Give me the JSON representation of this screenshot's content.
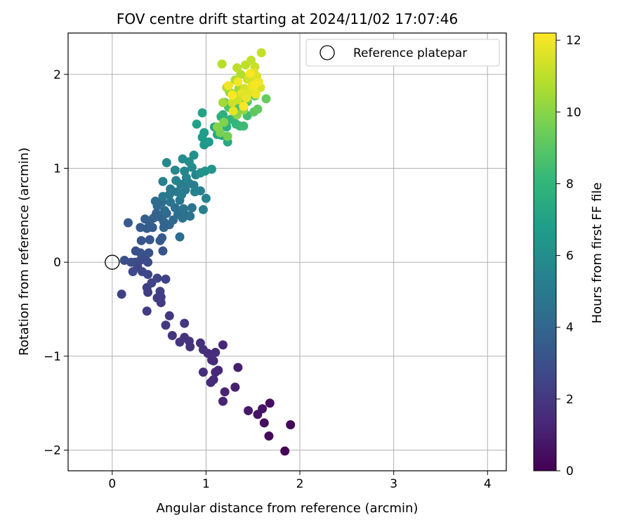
{
  "chart_data": {
    "type": "scatter",
    "title": "FOV centre drift starting at 2024/11/02 17:07:46",
    "xlabel": "Angular distance from reference (arcmin)",
    "ylabel": "Rotation from reference (arcmin)",
    "xlim": [
      -0.47,
      4.2
    ],
    "ylim": [
      -2.22,
      2.44
    ],
    "xticks": [
      0,
      1,
      2,
      3,
      4
    ],
    "yticks": [
      -2,
      -1,
      0,
      1,
      2
    ],
    "grid": true,
    "legend_position": "top-right",
    "reference": {
      "label": "Reference platepar",
      "x": 0,
      "y": 0
    },
    "colorbar": {
      "label": "Hours from first FF file",
      "colormap": "viridis",
      "range": [
        0,
        12.2
      ],
      "ticks": [
        0,
        2,
        4,
        6,
        8,
        10,
        12
      ]
    },
    "colormap_stops": [
      "#440154",
      "#482878",
      "#3e4989",
      "#31688e",
      "#26828e",
      "#1f9e89",
      "#35b779",
      "#6ece58",
      "#b5de2b",
      "#fde725"
    ],
    "series": [
      {
        "points": [
          [
            1.84,
            -2.01,
            0.1
          ],
          [
            1.9,
            -1.73,
            0.2
          ],
          [
            1.67,
            -1.85,
            0.3
          ],
          [
            1.62,
            -1.71,
            0.4
          ],
          [
            1.68,
            -1.5,
            0.5
          ],
          [
            1.55,
            -1.62,
            0.6
          ],
          [
            1.6,
            -1.56,
            0.7
          ],
          [
            1.45,
            -1.58,
            0.8
          ],
          [
            1.34,
            -1.12,
            1.0
          ],
          [
            1.31,
            -1.33,
            1.1
          ],
          [
            1.2,
            -1.38,
            1.2
          ],
          [
            1.18,
            -1.48,
            1.2
          ],
          [
            1.18,
            -0.88,
            1.3
          ],
          [
            1.13,
            -1.15,
            1.4
          ],
          [
            1.1,
            -1.17,
            1.4
          ],
          [
            1.08,
            -1.25,
            1.4
          ],
          [
            1.05,
            -1.28,
            1.5
          ],
          [
            1.06,
            -1.04,
            1.5
          ],
          [
            1.08,
            -1.05,
            1.5
          ],
          [
            1.1,
            -0.96,
            1.6
          ],
          [
            1.02,
            -0.97,
            1.6
          ],
          [
            0.97,
            -0.93,
            1.7
          ],
          [
            0.94,
            -0.86,
            1.7
          ],
          [
            0.97,
            -1.17,
            1.7
          ],
          [
            0.82,
            -0.84,
            1.8
          ],
          [
            0.83,
            -0.9,
            1.8
          ],
          [
            0.77,
            -0.8,
            1.8
          ],
          [
            0.72,
            -0.85,
            1.9
          ],
          [
            0.64,
            -0.78,
            1.9
          ],
          [
            0.57,
            -0.67,
            2.0
          ],
          [
            0.61,
            -0.57,
            2.0
          ],
          [
            0.77,
            -0.65,
            2.0
          ],
          [
            0.52,
            -0.43,
            2.1
          ],
          [
            0.52,
            -0.37,
            2.1
          ],
          [
            0.48,
            -0.38,
            2.2
          ],
          [
            0.38,
            -0.32,
            2.2
          ],
          [
            0.37,
            -0.52,
            2.2
          ],
          [
            0.37,
            -0.27,
            2.3
          ],
          [
            0.51,
            -0.31,
            2.3
          ],
          [
            0.1,
            -0.34,
            2.4
          ],
          [
            0.42,
            -0.22,
            2.5
          ],
          [
            0.57,
            -0.18,
            2.5
          ],
          [
            0.48,
            -0.17,
            2.5
          ],
          [
            0.38,
            -0.13,
            2.6
          ],
          [
            0.32,
            -0.1,
            2.6
          ],
          [
            0.27,
            -0.05,
            2.6
          ],
          [
            0.22,
            -0.1,
            2.7
          ],
          [
            0.24,
            0.0,
            2.7
          ],
          [
            0.38,
            0.0,
            2.8
          ],
          [
            0.3,
            0.02,
            2.8
          ],
          [
            0.2,
            0.0,
            2.9
          ],
          [
            0.35,
            0.05,
            2.9
          ],
          [
            0.13,
            0.02,
            3.0
          ],
          [
            0.25,
            0.12,
            3.0
          ],
          [
            0.39,
            0.1,
            3.1
          ],
          [
            0.3,
            0.1,
            3.1
          ],
          [
            0.54,
            0.12,
            3.2
          ],
          [
            0.31,
            0.23,
            3.3
          ],
          [
            0.4,
            0.24,
            3.3
          ],
          [
            0.51,
            0.23,
            3.4
          ],
          [
            0.53,
            0.26,
            3.4
          ],
          [
            0.17,
            0.42,
            3.5
          ],
          [
            0.3,
            0.37,
            3.5
          ],
          [
            0.37,
            0.36,
            3.6
          ],
          [
            0.43,
            0.37,
            3.6
          ],
          [
            0.35,
            0.46,
            3.7
          ],
          [
            0.4,
            0.4,
            3.7
          ],
          [
            0.44,
            0.47,
            3.8
          ],
          [
            0.47,
            0.52,
            3.8
          ],
          [
            0.51,
            0.48,
            3.9
          ],
          [
            0.55,
            0.43,
            3.9
          ],
          [
            0.55,
            0.37,
            4.0
          ],
          [
            0.61,
            0.4,
            4.0
          ],
          [
            0.65,
            0.45,
            4.1
          ],
          [
            0.58,
            0.52,
            4.1
          ],
          [
            0.48,
            0.6,
            4.2
          ],
          [
            0.53,
            0.64,
            4.2
          ],
          [
            0.46,
            0.65,
            4.3
          ],
          [
            0.56,
            0.55,
            4.3
          ],
          [
            0.67,
            0.58,
            4.4
          ],
          [
            0.72,
            0.27,
            4.4
          ],
          [
            0.7,
            0.51,
            4.5
          ],
          [
            0.75,
            0.47,
            4.5
          ],
          [
            0.79,
            0.5,
            4.6
          ],
          [
            0.83,
            0.49,
            4.6
          ],
          [
            0.76,
            0.57,
            4.7
          ],
          [
            0.85,
            0.58,
            4.7
          ],
          [
            0.72,
            0.66,
            4.8
          ],
          [
            0.62,
            0.64,
            4.8
          ],
          [
            0.54,
            0.7,
            4.9
          ],
          [
            0.61,
            0.72,
            4.9
          ],
          [
            0.62,
            0.78,
            5.0
          ],
          [
            0.69,
            0.75,
            5.0
          ],
          [
            0.74,
            0.72,
            5.1
          ],
          [
            0.78,
            0.77,
            5.1
          ],
          [
            0.73,
            0.83,
            5.2
          ],
          [
            0.82,
            0.84,
            5.2
          ],
          [
            0.87,
            0.82,
            5.2
          ],
          [
            0.88,
            0.75,
            5.3
          ],
          [
            0.94,
            0.76,
            5.3
          ],
          [
            0.97,
            0.56,
            5.3
          ],
          [
            1.0,
            0.68,
            5.4
          ],
          [
            0.54,
            0.86,
            5.4
          ],
          [
            0.68,
            0.87,
            5.5
          ],
          [
            0.79,
            0.9,
            5.5
          ],
          [
            0.89,
            0.93,
            5.6
          ],
          [
            0.77,
            0.97,
            5.6
          ],
          [
            0.67,
            0.98,
            5.7
          ],
          [
            0.58,
            1.06,
            5.7
          ],
          [
            0.85,
            1.01,
            5.8
          ],
          [
            0.75,
            1.1,
            5.9
          ],
          [
            0.82,
            1.07,
            6.0
          ],
          [
            0.87,
            1.14,
            6.1
          ],
          [
            0.94,
            0.95,
            6.2
          ],
          [
            0.99,
            0.97,
            6.3
          ],
          [
            1.06,
            0.99,
            6.4
          ],
          [
            0.98,
            1.25,
            6.5
          ],
          [
            1.03,
            1.28,
            6.6
          ],
          [
            0.96,
            1.33,
            6.7
          ],
          [
            0.98,
            1.38,
            6.8
          ],
          [
            0.9,
            1.47,
            6.9
          ],
          [
            0.96,
            1.59,
            7.0
          ],
          [
            1.09,
            1.44,
            7.1
          ],
          [
            1.12,
            1.36,
            7.2
          ],
          [
            1.17,
            1.35,
            7.3
          ],
          [
            1.23,
            1.28,
            7.4
          ],
          [
            1.2,
            1.48,
            7.5
          ],
          [
            1.16,
            1.55,
            7.6
          ],
          [
            1.18,
            1.57,
            7.7
          ],
          [
            1.22,
            1.44,
            7.8
          ],
          [
            1.26,
            1.52,
            7.9
          ],
          [
            1.32,
            1.47,
            8.0
          ],
          [
            1.31,
            1.56,
            8.1
          ],
          [
            1.36,
            1.45,
            8.2
          ],
          [
            1.4,
            1.45,
            8.3
          ],
          [
            1.44,
            1.56,
            8.4
          ],
          [
            1.36,
            1.65,
            8.5
          ],
          [
            1.3,
            1.63,
            8.6
          ],
          [
            1.24,
            1.65,
            8.7
          ],
          [
            1.2,
            1.7,
            8.8
          ],
          [
            1.37,
            1.7,
            8.9
          ],
          [
            1.44,
            1.71,
            9.0
          ],
          [
            1.51,
            1.6,
            9.1
          ],
          [
            1.55,
            1.63,
            9.2
          ],
          [
            1.64,
            1.74,
            9.3
          ],
          [
            1.52,
            1.77,
            9.4
          ],
          [
            1.45,
            1.8,
            9.5
          ],
          [
            1.23,
            1.34,
            9.6
          ],
          [
            1.15,
            1.38,
            9.7
          ],
          [
            1.19,
            1.49,
            9.8
          ],
          [
            1.12,
            1.44,
            9.9
          ],
          [
            1.33,
            1.57,
            10.0
          ],
          [
            1.4,
            1.62,
            10.1
          ],
          [
            1.3,
            1.79,
            10.2
          ],
          [
            1.25,
            1.81,
            10.3
          ],
          [
            1.35,
            1.85,
            10.4
          ],
          [
            1.18,
            1.7,
            10.5
          ],
          [
            1.22,
            1.86,
            10.6
          ],
          [
            1.31,
            1.94,
            10.7
          ],
          [
            1.37,
            2.0,
            10.8
          ],
          [
            1.17,
            2.11,
            10.9
          ],
          [
            1.33,
            2.07,
            11.0
          ],
          [
            1.42,
            2.1,
            11.0
          ],
          [
            1.48,
            2.15,
            11.1
          ],
          [
            1.59,
            2.23,
            11.1
          ],
          [
            1.52,
            2.08,
            11.2
          ],
          [
            1.44,
            1.95,
            11.2
          ],
          [
            1.28,
            1.7,
            11.3
          ],
          [
            1.34,
            1.73,
            11.3
          ],
          [
            1.41,
            1.85,
            11.4
          ],
          [
            1.48,
            1.93,
            11.4
          ],
          [
            1.54,
            1.98,
            11.5
          ],
          [
            1.58,
            1.86,
            11.5
          ],
          [
            1.46,
            1.81,
            11.6
          ],
          [
            1.51,
            2.02,
            11.6
          ],
          [
            1.29,
            1.61,
            11.7
          ],
          [
            1.38,
            1.8,
            11.7
          ],
          [
            1.43,
            1.75,
            11.8
          ],
          [
            1.49,
            1.87,
            11.8
          ],
          [
            1.53,
            1.79,
            11.9
          ],
          [
            1.56,
            1.92,
            11.9
          ],
          [
            1.24,
            1.88,
            12.0
          ],
          [
            1.34,
            1.92,
            12.0
          ],
          [
            1.47,
            2.01,
            12.1
          ],
          [
            1.52,
            1.89,
            12.1
          ],
          [
            1.4,
            1.66,
            12.2
          ],
          [
            1.28,
            1.78,
            12.2
          ]
        ]
      }
    ]
  }
}
